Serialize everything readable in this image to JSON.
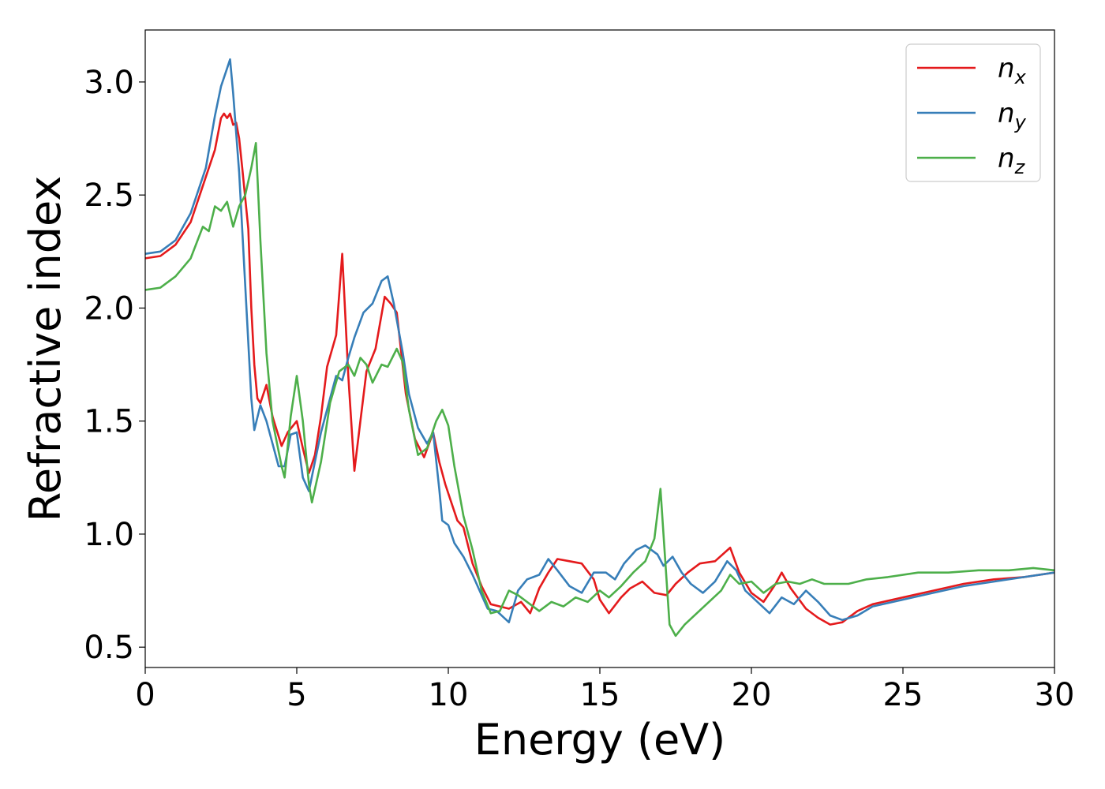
{
  "chart_data": {
    "type": "line",
    "xlabel": "Energy (eV)",
    "ylabel": "Refractive index",
    "xlim": [
      0,
      30
    ],
    "ylim": [
      0.41,
      3.23
    ],
    "xticks": [
      0,
      5,
      10,
      15,
      20,
      25,
      30
    ],
    "yticks": [
      0.5,
      1.0,
      1.5,
      2.0,
      2.5,
      3.0
    ],
    "grid": false,
    "legend_position": "top-right",
    "series": [
      {
        "name": "n",
        "sub": "x",
        "color": "#e41a1c",
        "points": [
          [
            0,
            2.22
          ],
          [
            0.5,
            2.23
          ],
          [
            1.0,
            2.28
          ],
          [
            1.5,
            2.38
          ],
          [
            2.0,
            2.58
          ],
          [
            2.3,
            2.7
          ],
          [
            2.5,
            2.84
          ],
          [
            2.6,
            2.86
          ],
          [
            2.7,
            2.84
          ],
          [
            2.8,
            2.86
          ],
          [
            2.9,
            2.81
          ],
          [
            3.0,
            2.82
          ],
          [
            3.1,
            2.75
          ],
          [
            3.2,
            2.62
          ],
          [
            3.4,
            2.35
          ],
          [
            3.5,
            2.0
          ],
          [
            3.6,
            1.75
          ],
          [
            3.7,
            1.6
          ],
          [
            3.8,
            1.58
          ],
          [
            4.0,
            1.66
          ],
          [
            4.2,
            1.52
          ],
          [
            4.5,
            1.39
          ],
          [
            4.7,
            1.45
          ],
          [
            5.0,
            1.5
          ],
          [
            5.2,
            1.38
          ],
          [
            5.4,
            1.27
          ],
          [
            5.6,
            1.35
          ],
          [
            5.8,
            1.52
          ],
          [
            6.0,
            1.74
          ],
          [
            6.3,
            1.88
          ],
          [
            6.5,
            2.24
          ],
          [
            6.7,
            1.7
          ],
          [
            6.9,
            1.28
          ],
          [
            7.1,
            1.5
          ],
          [
            7.3,
            1.72
          ],
          [
            7.6,
            1.82
          ],
          [
            7.9,
            2.05
          ],
          [
            8.1,
            2.02
          ],
          [
            8.3,
            1.98
          ],
          [
            8.6,
            1.62
          ],
          [
            8.9,
            1.42
          ],
          [
            9.2,
            1.34
          ],
          [
            9.5,
            1.45
          ],
          [
            9.7,
            1.32
          ],
          [
            9.9,
            1.22
          ],
          [
            10.1,
            1.14
          ],
          [
            10.3,
            1.06
          ],
          [
            10.5,
            1.03
          ],
          [
            10.8,
            0.87
          ],
          [
            11.1,
            0.77
          ],
          [
            11.4,
            0.69
          ],
          [
            11.7,
            0.68
          ],
          [
            12.0,
            0.67
          ],
          [
            12.4,
            0.7
          ],
          [
            12.7,
            0.65
          ],
          [
            13.0,
            0.76
          ],
          [
            13.3,
            0.83
          ],
          [
            13.6,
            0.89
          ],
          [
            14.0,
            0.88
          ],
          [
            14.4,
            0.87
          ],
          [
            14.8,
            0.8
          ],
          [
            15.0,
            0.71
          ],
          [
            15.3,
            0.65
          ],
          [
            15.7,
            0.72
          ],
          [
            16.0,
            0.76
          ],
          [
            16.4,
            0.79
          ],
          [
            16.8,
            0.74
          ],
          [
            17.2,
            0.73
          ],
          [
            17.5,
            0.78
          ],
          [
            17.9,
            0.83
          ],
          [
            18.3,
            0.87
          ],
          [
            18.8,
            0.88
          ],
          [
            19.3,
            0.94
          ],
          [
            19.6,
            0.83
          ],
          [
            20.0,
            0.74
          ],
          [
            20.4,
            0.7
          ],
          [
            20.8,
            0.78
          ],
          [
            21.0,
            0.83
          ],
          [
            21.3,
            0.76
          ],
          [
            21.8,
            0.67
          ],
          [
            22.2,
            0.63
          ],
          [
            22.6,
            0.6
          ],
          [
            23.0,
            0.61
          ],
          [
            23.5,
            0.66
          ],
          [
            24.0,
            0.69
          ],
          [
            25.0,
            0.72
          ],
          [
            26.0,
            0.75
          ],
          [
            27.0,
            0.78
          ],
          [
            28.0,
            0.8
          ],
          [
            29.0,
            0.81
          ],
          [
            30.0,
            0.83
          ]
        ]
      },
      {
        "name": "n",
        "sub": "y",
        "color": "#377eb8",
        "points": [
          [
            0,
            2.24
          ],
          [
            0.5,
            2.25
          ],
          [
            1.0,
            2.3
          ],
          [
            1.5,
            2.42
          ],
          [
            2.0,
            2.62
          ],
          [
            2.3,
            2.85
          ],
          [
            2.5,
            2.98
          ],
          [
            2.7,
            3.06
          ],
          [
            2.8,
            3.1
          ],
          [
            2.9,
            2.95
          ],
          [
            3.1,
            2.6
          ],
          [
            3.3,
            2.1
          ],
          [
            3.5,
            1.6
          ],
          [
            3.6,
            1.46
          ],
          [
            3.8,
            1.57
          ],
          [
            4.0,
            1.5
          ],
          [
            4.2,
            1.4
          ],
          [
            4.4,
            1.3
          ],
          [
            4.6,
            1.3
          ],
          [
            4.8,
            1.44
          ],
          [
            5.0,
            1.45
          ],
          [
            5.2,
            1.25
          ],
          [
            5.4,
            1.19
          ],
          [
            5.6,
            1.32
          ],
          [
            5.8,
            1.45
          ],
          [
            6.1,
            1.6
          ],
          [
            6.3,
            1.7
          ],
          [
            6.5,
            1.68
          ],
          [
            6.7,
            1.78
          ],
          [
            6.9,
            1.87
          ],
          [
            7.2,
            1.98
          ],
          [
            7.5,
            2.02
          ],
          [
            7.8,
            2.12
          ],
          [
            8.0,
            2.14
          ],
          [
            8.2,
            2.02
          ],
          [
            8.5,
            1.8
          ],
          [
            8.7,
            1.62
          ],
          [
            9.0,
            1.47
          ],
          [
            9.3,
            1.4
          ],
          [
            9.5,
            1.45
          ],
          [
            9.7,
            1.2
          ],
          [
            9.8,
            1.06
          ],
          [
            10.0,
            1.04
          ],
          [
            10.2,
            0.96
          ],
          [
            10.5,
            0.9
          ],
          [
            10.8,
            0.82
          ],
          [
            11.1,
            0.73
          ],
          [
            11.3,
            0.67
          ],
          [
            11.6,
            0.66
          ],
          [
            12.0,
            0.61
          ],
          [
            12.3,
            0.75
          ],
          [
            12.6,
            0.8
          ],
          [
            13.0,
            0.82
          ],
          [
            13.3,
            0.89
          ],
          [
            13.6,
            0.84
          ],
          [
            14.0,
            0.77
          ],
          [
            14.4,
            0.74
          ],
          [
            14.8,
            0.83
          ],
          [
            15.2,
            0.83
          ],
          [
            15.5,
            0.8
          ],
          [
            15.8,
            0.87
          ],
          [
            16.2,
            0.93
          ],
          [
            16.5,
            0.95
          ],
          [
            16.9,
            0.91
          ],
          [
            17.1,
            0.86
          ],
          [
            17.4,
            0.9
          ],
          [
            17.7,
            0.83
          ],
          [
            18.0,
            0.78
          ],
          [
            18.4,
            0.74
          ],
          [
            18.8,
            0.79
          ],
          [
            19.2,
            0.88
          ],
          [
            19.5,
            0.84
          ],
          [
            19.8,
            0.75
          ],
          [
            20.2,
            0.7
          ],
          [
            20.6,
            0.65
          ],
          [
            21.0,
            0.72
          ],
          [
            21.4,
            0.69
          ],
          [
            21.8,
            0.75
          ],
          [
            22.2,
            0.7
          ],
          [
            22.6,
            0.64
          ],
          [
            23.0,
            0.62
          ],
          [
            23.5,
            0.64
          ],
          [
            24.0,
            0.68
          ],
          [
            25.0,
            0.71
          ],
          [
            26.0,
            0.74
          ],
          [
            27.0,
            0.77
          ],
          [
            28.0,
            0.79
          ],
          [
            29.0,
            0.81
          ],
          [
            30.0,
            0.83
          ]
        ]
      },
      {
        "name": "n",
        "sub": "z",
        "color": "#4daf4a",
        "points": [
          [
            0,
            2.08
          ],
          [
            0.5,
            2.09
          ],
          [
            1.0,
            2.14
          ],
          [
            1.5,
            2.22
          ],
          [
            1.9,
            2.36
          ],
          [
            2.1,
            2.34
          ],
          [
            2.3,
            2.45
          ],
          [
            2.5,
            2.43
          ],
          [
            2.7,
            2.47
          ],
          [
            2.9,
            2.36
          ],
          [
            3.1,
            2.45
          ],
          [
            3.3,
            2.5
          ],
          [
            3.5,
            2.62
          ],
          [
            3.65,
            2.73
          ],
          [
            3.8,
            2.3
          ],
          [
            4.0,
            1.8
          ],
          [
            4.2,
            1.5
          ],
          [
            4.5,
            1.3
          ],
          [
            4.6,
            1.25
          ],
          [
            4.8,
            1.52
          ],
          [
            5.0,
            1.7
          ],
          [
            5.2,
            1.5
          ],
          [
            5.4,
            1.22
          ],
          [
            5.5,
            1.14
          ],
          [
            5.8,
            1.32
          ],
          [
            6.1,
            1.58
          ],
          [
            6.4,
            1.72
          ],
          [
            6.7,
            1.75
          ],
          [
            6.9,
            1.7
          ],
          [
            7.1,
            1.78
          ],
          [
            7.3,
            1.75
          ],
          [
            7.5,
            1.67
          ],
          [
            7.8,
            1.75
          ],
          [
            8.0,
            1.74
          ],
          [
            8.3,
            1.82
          ],
          [
            8.5,
            1.76
          ],
          [
            8.7,
            1.55
          ],
          [
            9.0,
            1.35
          ],
          [
            9.3,
            1.38
          ],
          [
            9.6,
            1.5
          ],
          [
            9.8,
            1.55
          ],
          [
            10.0,
            1.48
          ],
          [
            10.2,
            1.3
          ],
          [
            10.5,
            1.08
          ],
          [
            10.8,
            0.93
          ],
          [
            11.1,
            0.75
          ],
          [
            11.4,
            0.65
          ],
          [
            11.7,
            0.66
          ],
          [
            12.0,
            0.75
          ],
          [
            12.3,
            0.73
          ],
          [
            12.6,
            0.7
          ],
          [
            13.0,
            0.66
          ],
          [
            13.4,
            0.7
          ],
          [
            13.8,
            0.68
          ],
          [
            14.2,
            0.72
          ],
          [
            14.6,
            0.7
          ],
          [
            15.0,
            0.75
          ],
          [
            15.3,
            0.72
          ],
          [
            15.7,
            0.77
          ],
          [
            16.1,
            0.83
          ],
          [
            16.5,
            0.88
          ],
          [
            16.8,
            0.98
          ],
          [
            17.0,
            1.2
          ],
          [
            17.1,
            1.0
          ],
          [
            17.3,
            0.6
          ],
          [
            17.5,
            0.55
          ],
          [
            17.8,
            0.6
          ],
          [
            18.2,
            0.65
          ],
          [
            18.6,
            0.7
          ],
          [
            19.0,
            0.75
          ],
          [
            19.3,
            0.82
          ],
          [
            19.6,
            0.78
          ],
          [
            20.0,
            0.79
          ],
          [
            20.4,
            0.74
          ],
          [
            20.8,
            0.78
          ],
          [
            21.2,
            0.79
          ],
          [
            21.6,
            0.78
          ],
          [
            22.0,
            0.8
          ],
          [
            22.4,
            0.78
          ],
          [
            22.8,
            0.78
          ],
          [
            23.2,
            0.78
          ],
          [
            23.8,
            0.8
          ],
          [
            24.5,
            0.81
          ],
          [
            25.5,
            0.83
          ],
          [
            26.5,
            0.83
          ],
          [
            27.5,
            0.84
          ],
          [
            28.5,
            0.84
          ],
          [
            29.3,
            0.85
          ],
          [
            30.0,
            0.84
          ]
        ]
      }
    ]
  }
}
